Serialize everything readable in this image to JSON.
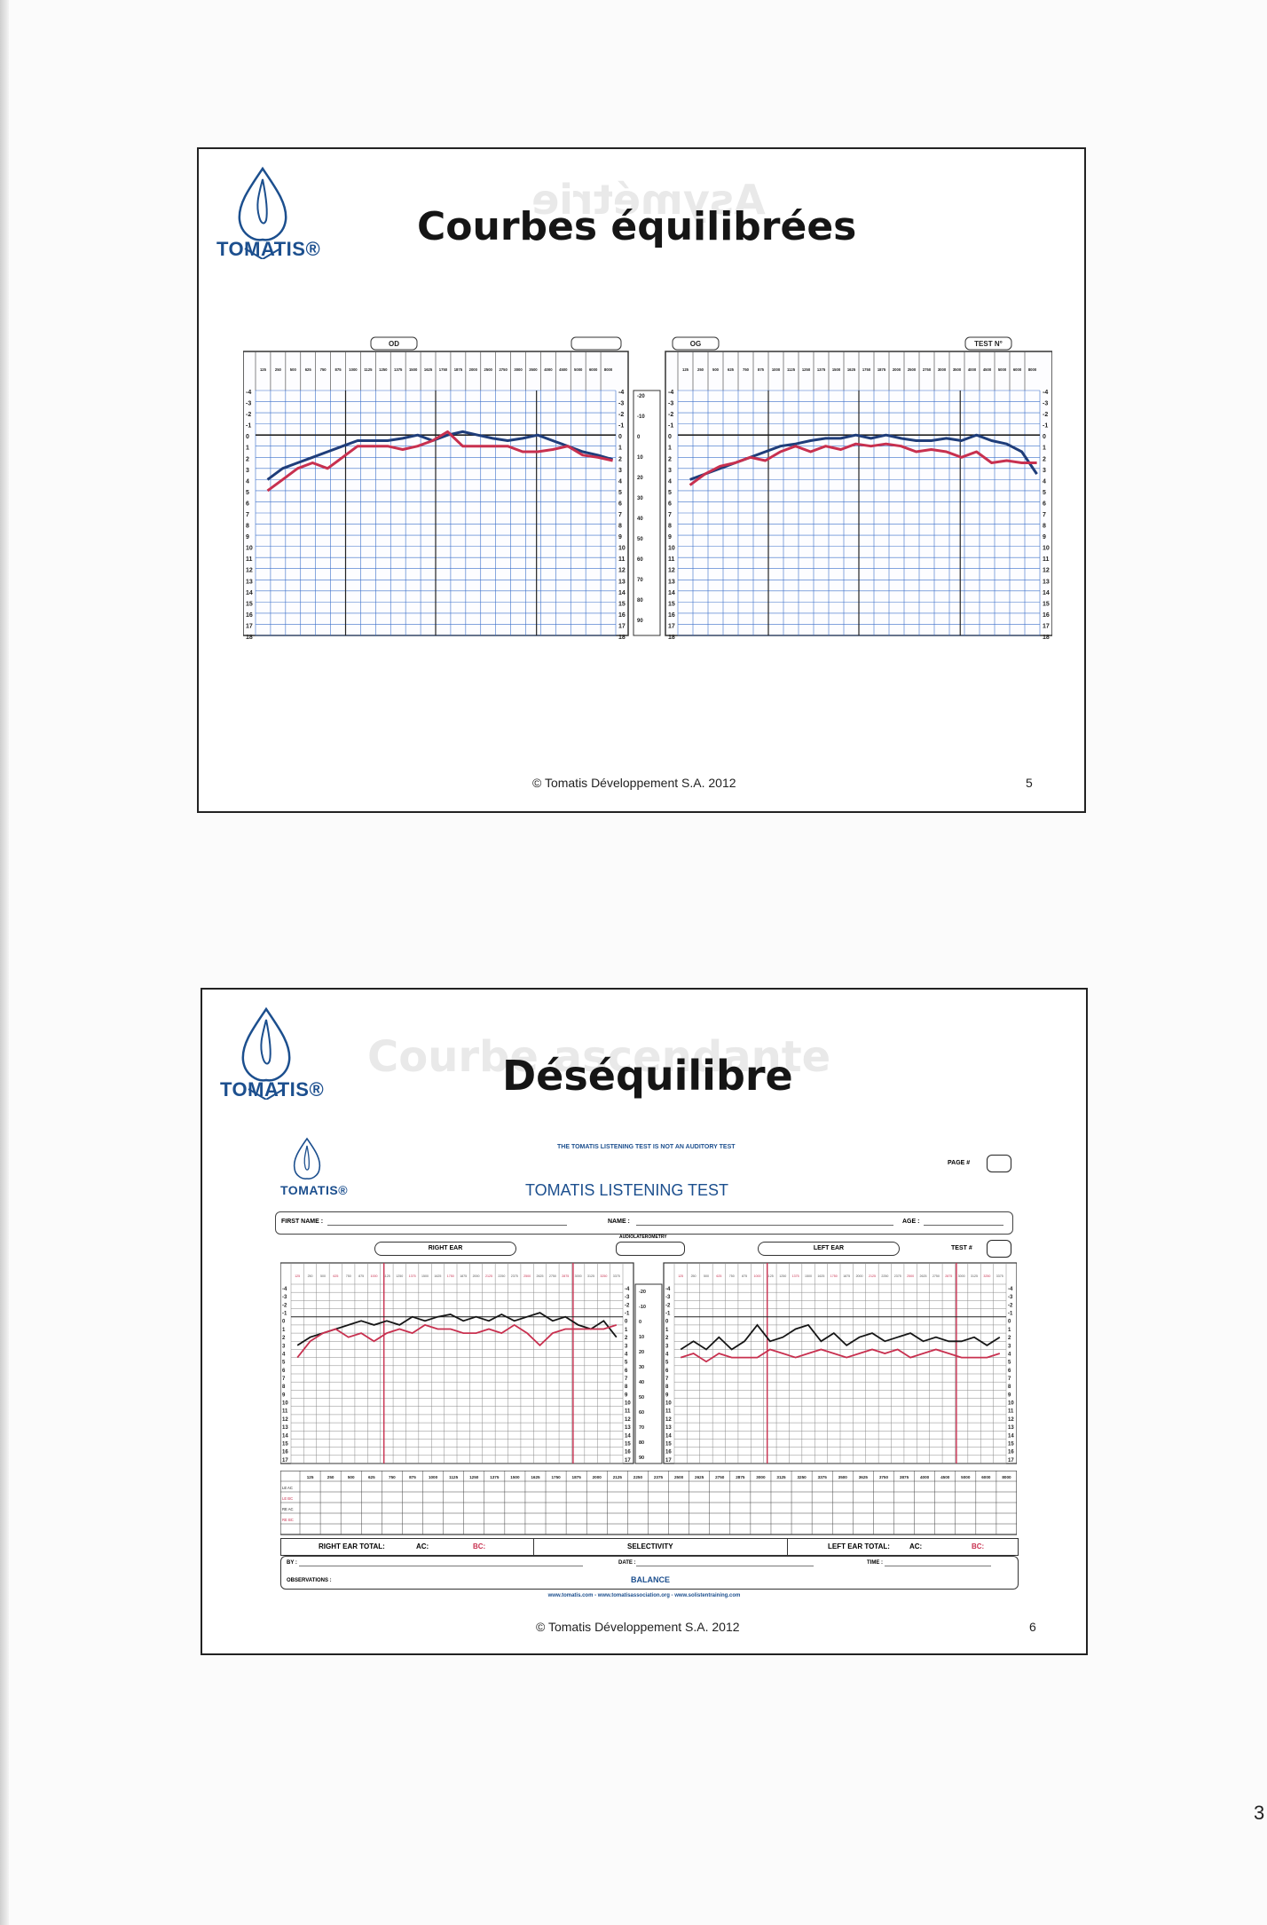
{
  "slide1": {
    "title": "Courbes équilibrées",
    "footer": "© Tomatis Développement S.A. 2012",
    "page": "5",
    "logo": "TOMATIS®",
    "ear_labels": [
      "OD",
      "OG",
      "TEST N°"
    ],
    "freqs": [
      "125",
      "250",
      "500",
      "625",
      "750",
      "875",
      "1000",
      "1125",
      "1250",
      "1375",
      "1500",
      "1625",
      "1750",
      "1875",
      "2000",
      "2500",
      "2750",
      "3000",
      "3500",
      "4000",
      "4500",
      "5000",
      "6000",
      "8000"
    ],
    "db_scale": [
      "-4",
      "-3",
      "-2",
      "-1",
      "0",
      "1",
      "2",
      "3",
      "4",
      "5",
      "6",
      "7",
      "8",
      "9",
      "10",
      "11",
      "12",
      "13",
      "14",
      "15",
      "16",
      "17",
      "18"
    ],
    "db_mid": [
      "-20",
      "-10",
      "0",
      "10",
      "20",
      "30",
      "40",
      "50",
      "60",
      "70",
      "80",
      "90"
    ]
  },
  "slide2": {
    "title": "Déséquilibre",
    "footer": "© Tomatis Développement S.A. 2012",
    "page": "6",
    "logo": "TOMATIS®",
    "notice": "THE TOMATIS LISTENING TEST IS NOT AN AUDITORY TEST",
    "form_logo": "TOMATIS®",
    "form_title": "TOMATIS LISTENING TEST",
    "page_label": "PAGE #",
    "test_label": "TEST #",
    "first_name": "FIRST NAME :",
    "name": "NAME :",
    "age": "AGE :",
    "audio_label": "AUDIOLATEROMETRY",
    "right_ear": "RIGHT EAR",
    "left_ear": "LEFT EAR",
    "table_freqs": [
      "125",
      "250",
      "500",
      "625",
      "750",
      "875",
      "1000",
      "1125",
      "1250",
      "1375",
      "1500",
      "1625",
      "1750",
      "1875",
      "2000",
      "2125",
      "2250",
      "2375",
      "2500",
      "2625",
      "2750",
      "2875",
      "3000",
      "3125",
      "3250",
      "3375",
      "3500",
      "3625",
      "3750",
      "3875",
      "4000",
      "4500",
      "5000",
      "6000",
      "8000"
    ],
    "row_labels": [
      "LE AC",
      "LE BC",
      "RE AC",
      "RE BC"
    ],
    "right_total": "RIGHT EAR TOTAL:",
    "ac": "AC:",
    "bc": "BC:",
    "selectivity": "SELECTIVITY",
    "left_total": "LEFT EAR TOTAL:",
    "by": "BY :",
    "date": "DATE :",
    "time": "TIME :",
    "observations": "OBSERVATIONS :",
    "balance": "BALANCE",
    "websites": "www.tomatis.com - www.tomatisassociation.org - www.solistentraining.com"
  },
  "chart_data": [
    {
      "type": "line",
      "ylabel": "",
      "ylim": [
        -4,
        18
      ],
      "panels": [
        {
          "ear": "right",
          "series": [
            {
              "color": "#1f3d7a",
              "values": [
                4,
                3,
                2.5,
                2,
                1.5,
                1,
                0.5,
                0.5,
                0.5,
                0.3,
                0,
                0.5,
                0,
                -0.3,
                0,
                0.3,
                0.5,
                0.3,
                0,
                0.5,
                1,
                1.5,
                1.8,
                2.2
              ]
            },
            {
              "color": "#c8304f",
              "values": [
                5,
                4,
                3,
                2.5,
                3,
                2,
                1,
                1,
                1,
                1.3,
                1,
                0.5,
                -0.3,
                1,
                1,
                1,
                1,
                1.5,
                1.5,
                1.3,
                1,
                1.8,
                2,
                2.3
              ]
            }
          ]
        },
        {
          "ear": "left",
          "series": [
            {
              "color": "#1f3d7a",
              "values": [
                4,
                3.5,
                3,
                2.5,
                2,
                1.5,
                1,
                0.8,
                0.5,
                0.3,
                0.3,
                0,
                0.3,
                0,
                0.3,
                0.5,
                0.5,
                0.3,
                0.5,
                0,
                0.5,
                0.8,
                1.5,
                3.5
              ]
            },
            {
              "color": "#c8304f",
              "values": [
                4.5,
                3.5,
                2.8,
                2.5,
                2,
                2.3,
                1.5,
                1,
                1.5,
                1,
                1.3,
                0.8,
                1,
                0.8,
                1,
                1.5,
                1.3,
                1.5,
                2,
                1.5,
                2.5,
                2.3,
                2.5,
                2.5
              ]
            }
          ]
        }
      ]
    },
    {
      "type": "line",
      "ylim": [
        -4,
        18
      ],
      "panels": [
        {
          "ear": "right",
          "series": [
            {
              "color": "#151515",
              "values": [
                3.5,
                2.5,
                2,
                1.5,
                1,
                0.5,
                1,
                0.5,
                1,
                0,
                0.5,
                0,
                -0.3,
                0.5,
                0,
                0.5,
                -0.3,
                0.5,
                0,
                -0.5,
                0.5,
                0,
                1,
                1.5,
                0.5,
                2.5
              ]
            },
            {
              "color": "#c8304f",
              "values": [
                5,
                3,
                2,
                1.5,
                2.5,
                2,
                3,
                2,
                1.5,
                2,
                1,
                1.5,
                1.5,
                2,
                2,
                1.5,
                2,
                1,
                2,
                3.5,
                2,
                1.5,
                1.5,
                1.5,
                1.5,
                1
              ]
            }
          ]
        },
        {
          "ear": "left",
          "series": [
            {
              "color": "#151515",
              "values": [
                4,
                3,
                4,
                2.5,
                4,
                3,
                1,
                3,
                2.5,
                1.5,
                1,
                3,
                2,
                3.5,
                2.5,
                2,
                3,
                2.5,
                2,
                3,
                2.5,
                3,
                3,
                2.5,
                3.5,
                2.5
              ]
            },
            {
              "color": "#c8304f",
              "values": [
                5,
                4.5,
                5.5,
                4.5,
                5,
                5,
                5,
                4,
                4.5,
                5,
                4.5,
                4,
                4.5,
                5,
                4.5,
                4,
                4.5,
                4,
                5,
                4.5,
                4,
                4.5,
                5,
                5,
                5,
                4.5
              ]
            }
          ]
        }
      ]
    }
  ]
}
